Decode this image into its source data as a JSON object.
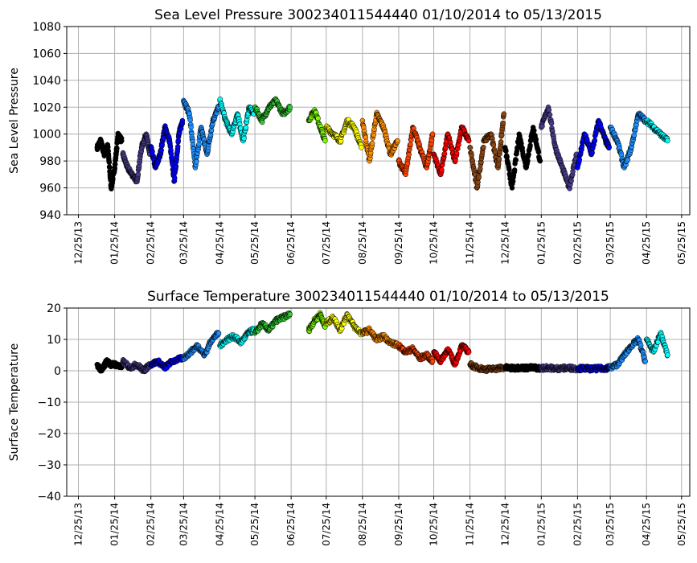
{
  "chart_data": [
    {
      "type": "scatter",
      "title": "Sea Level Pressure 300234011544440  01/10/2014 to 05/13/2015",
      "ylabel": "Sea Level Pressure",
      "xlabel": "",
      "ylim": [
        940,
        1080
      ],
      "yticks": [
        940,
        960,
        980,
        1000,
        1020,
        1040,
        1060,
        1080
      ],
      "xticks": [
        "12/25/13",
        "01/25/14",
        "02/25/14",
        "03/25/14",
        "04/25/14",
        "05/25/14",
        "06/25/14",
        "07/25/14",
        "08/25/14",
        "09/25/14",
        "10/25/14",
        "11/25/14",
        "12/25/14",
        "01/25/15",
        "02/25/15",
        "03/25/15",
        "04/25/15",
        "05/25/15"
      ],
      "grid": true,
      "x_range": [
        "2013-12-15",
        "2015-06-01"
      ],
      "series": [
        {
          "color": "#000000",
          "x": [
            "2014-01-10",
            "2014-01-13",
            "2014-01-16",
            "2014-01-19",
            "2014-01-22",
            "2014-01-25",
            "2014-01-28",
            "2014-01-31"
          ],
          "y": [
            990,
            995,
            985,
            992,
            960,
            975,
            1000,
            995
          ]
        },
        {
          "color": "#483d8b",
          "x": [
            "2014-02-01",
            "2014-02-05",
            "2014-02-09",
            "2014-02-13",
            "2014-02-17",
            "2014-02-21",
            "2014-02-24"
          ],
          "y": [
            985,
            975,
            970,
            965,
            990,
            1000,
            985
          ]
        },
        {
          "color": "#0000ff",
          "x": [
            "2014-02-25",
            "2014-03-01",
            "2014-03-05",
            "2014-03-09",
            "2014-03-13",
            "2014-03-17",
            "2014-03-21",
            "2014-03-24"
          ],
          "y": [
            990,
            975,
            985,
            1005,
            995,
            965,
            1000,
            1010
          ]
        },
        {
          "color": "#1e90ff",
          "x": [
            "2014-03-25",
            "2014-03-30",
            "2014-04-04",
            "2014-04-09",
            "2014-04-14",
            "2014-04-19",
            "2014-04-24"
          ],
          "y": [
            1025,
            1015,
            975,
            1005,
            985,
            1010,
            1020
          ]
        },
        {
          "color": "#00ffff",
          "x": [
            "2014-04-25",
            "2014-04-30",
            "2014-05-05",
            "2014-05-10",
            "2014-05-15",
            "2014-05-20",
            "2014-05-24"
          ],
          "y": [
            1025,
            1010,
            1000,
            1015,
            995,
            1020,
            1015
          ]
        },
        {
          "color": "#32cd32",
          "x": [
            "2014-05-25",
            "2014-05-31",
            "2014-06-06",
            "2014-06-12",
            "2014-06-18",
            "2014-06-24"
          ],
          "y": [
            1020,
            1010,
            1020,
            1025,
            1015,
            1020
          ]
        },
        {
          "color": "#7cfc00",
          "x": [
            "2014-07-10",
            "2014-07-15",
            "2014-07-20",
            "2014-07-24"
          ],
          "y": [
            1010,
            1018,
            1005,
            995
          ]
        },
        {
          "color": "#ffff00",
          "x": [
            "2014-07-25",
            "2014-07-31",
            "2014-08-06",
            "2014-08-12",
            "2014-08-18",
            "2014-08-24"
          ],
          "y": [
            1005,
            1000,
            995,
            1010,
            1005,
            990
          ]
        },
        {
          "color": "#ff8c00",
          "x": [
            "2014-08-25",
            "2014-08-31",
            "2014-09-06",
            "2014-09-12",
            "2014-09-18",
            "2014-09-24"
          ],
          "y": [
            1010,
            980,
            1015,
            1005,
            985,
            995
          ]
        },
        {
          "color": "#ff4500",
          "x": [
            "2014-09-25",
            "2014-10-01",
            "2014-10-07",
            "2014-10-13",
            "2014-10-19",
            "2014-10-24"
          ],
          "y": [
            980,
            970,
            1005,
            990,
            975,
            1000
          ]
        },
        {
          "color": "#ff0000",
          "x": [
            "2014-10-25",
            "2014-10-31",
            "2014-11-06",
            "2014-11-12",
            "2014-11-18",
            "2014-11-24"
          ],
          "y": [
            985,
            970,
            1000,
            980,
            1005,
            995
          ]
        },
        {
          "color": "#8b4513",
          "x": [
            "2014-11-25",
            "2014-12-01",
            "2014-12-07",
            "2014-12-13",
            "2014-12-19",
            "2014-12-24"
          ],
          "y": [
            990,
            960,
            995,
            1000,
            975,
            1015
          ]
        },
        {
          "color": "#000000",
          "x": [
            "2014-12-25",
            "2014-12-31",
            "2015-01-06",
            "2015-01-12",
            "2015-01-18",
            "2015-01-24"
          ],
          "y": [
            990,
            960,
            1000,
            975,
            1005,
            980
          ]
        },
        {
          "color": "#483d8b",
          "x": [
            "2015-01-25",
            "2015-01-31",
            "2015-02-06",
            "2015-02-12",
            "2015-02-18",
            "2015-02-24"
          ],
          "y": [
            1005,
            1020,
            990,
            975,
            960,
            985
          ]
        },
        {
          "color": "#0000ff",
          "x": [
            "2015-02-25",
            "2015-03-03",
            "2015-03-09",
            "2015-03-15",
            "2015-03-21",
            "2015-03-24"
          ],
          "y": [
            975,
            1000,
            985,
            1010,
            995,
            990
          ]
        },
        {
          "color": "#1e90ff",
          "x": [
            "2015-03-25",
            "2015-03-31",
            "2015-04-06",
            "2015-04-12",
            "2015-04-18",
            "2015-04-24"
          ],
          "y": [
            1005,
            995,
            975,
            990,
            1015,
            1010
          ]
        },
        {
          "color": "#00ffff",
          "x": [
            "2015-04-25",
            "2015-05-01",
            "2015-05-07",
            "2015-05-13"
          ],
          "y": [
            1010,
            1005,
            1000,
            995
          ]
        }
      ]
    },
    {
      "type": "scatter",
      "title": "Surface Temperature 300234011544440  01/10/2014 to 05/13/2015",
      "ylabel": "Surface Temperature",
      "xlabel": "",
      "ylim": [
        -40,
        20
      ],
      "yticks": [
        -40,
        -30,
        -20,
        -10,
        0,
        10,
        20
      ],
      "xticks": [
        "12/25/13",
        "01/25/14",
        "02/25/14",
        "03/25/14",
        "04/25/14",
        "05/25/14",
        "06/25/14",
        "07/25/14",
        "08/25/14",
        "09/25/14",
        "10/25/14",
        "11/25/14",
        "12/25/14",
        "01/25/15",
        "02/25/15",
        "03/25/15",
        "04/25/15",
        "05/25/15"
      ],
      "grid": true,
      "x_range": [
        "2013-12-15",
        "2015-06-01"
      ],
      "series": [
        {
          "color": "#000000",
          "x": [
            "2014-01-10",
            "2014-01-14",
            "2014-01-18",
            "2014-01-22",
            "2014-01-26",
            "2014-01-31"
          ],
          "y": [
            2,
            0,
            3,
            2,
            2,
            1
          ]
        },
        {
          "color": "#483d8b",
          "x": [
            "2014-02-01",
            "2014-02-07",
            "2014-02-13",
            "2014-02-19",
            "2014-02-24"
          ],
          "y": [
            3,
            1,
            2,
            0,
            2
          ]
        },
        {
          "color": "#0000ff",
          "x": [
            "2014-02-25",
            "2014-03-03",
            "2014-03-09",
            "2014-03-15",
            "2014-03-24"
          ],
          "y": [
            2,
            3,
            1,
            3,
            4
          ]
        },
        {
          "color": "#1e90ff",
          "x": [
            "2014-03-25",
            "2014-03-31",
            "2014-04-06",
            "2014-04-12",
            "2014-04-18",
            "2014-04-24"
          ],
          "y": [
            4,
            6,
            8,
            5,
            10,
            12
          ]
        },
        {
          "color": "#00ffff",
          "x": [
            "2014-04-25",
            "2014-05-01",
            "2014-05-07",
            "2014-05-13",
            "2014-05-19",
            "2014-05-24"
          ],
          "y": [
            8,
            10,
            11,
            9,
            12,
            13
          ]
        },
        {
          "color": "#32cd32",
          "x": [
            "2014-05-25",
            "2014-05-31",
            "2014-06-06",
            "2014-06-12",
            "2014-06-18",
            "2014-06-24"
          ],
          "y": [
            12,
            15,
            13,
            16,
            17,
            18
          ]
        },
        {
          "color": "#7cfc00",
          "x": [
            "2014-07-10",
            "2014-07-15",
            "2014-07-20",
            "2014-07-24"
          ],
          "y": [
            13,
            16,
            18,
            14
          ]
        },
        {
          "color": "#ffff00",
          "x": [
            "2014-07-25",
            "2014-07-31",
            "2014-08-06",
            "2014-08-12",
            "2014-08-18",
            "2014-08-24"
          ],
          "y": [
            15,
            17,
            13,
            18,
            14,
            12
          ]
        },
        {
          "color": "#ff8c00",
          "x": [
            "2014-08-25",
            "2014-08-31",
            "2014-09-06",
            "2014-09-12",
            "2014-09-18",
            "2014-09-24"
          ],
          "y": [
            12,
            13,
            10,
            11,
            9,
            8
          ]
        },
        {
          "color": "#ff4500",
          "x": [
            "2014-09-25",
            "2014-10-01",
            "2014-10-07",
            "2014-10-13",
            "2014-10-19",
            "2014-10-24"
          ],
          "y": [
            8,
            6,
            7,
            4,
            5,
            3
          ]
        },
        {
          "color": "#ff0000",
          "x": [
            "2014-10-25",
            "2014-10-31",
            "2014-11-06",
            "2014-11-12",
            "2014-11-18",
            "2014-11-24"
          ],
          "y": [
            6,
            3,
            7,
            2,
            8,
            6
          ]
        },
        {
          "color": "#8b4513",
          "x": [
            "2014-11-25",
            "2014-12-01",
            "2014-12-07",
            "2014-12-13",
            "2014-12-19",
            "2014-12-24"
          ],
          "y": [
            2,
            1,
            0.5,
            0.5,
            0.8,
            1
          ]
        },
        {
          "color": "#000000",
          "x": [
            "2014-12-25",
            "2014-12-31",
            "2015-01-06",
            "2015-01-12",
            "2015-01-18",
            "2015-01-24"
          ],
          "y": [
            1,
            0.8,
            1,
            0.9,
            1,
            0.8
          ]
        },
        {
          "color": "#483d8b",
          "x": [
            "2015-01-25",
            "2015-01-31",
            "2015-02-06",
            "2015-02-12",
            "2015-02-18",
            "2015-02-24"
          ],
          "y": [
            0.8,
            1,
            0.7,
            0.8,
            0.9,
            0.7
          ]
        },
        {
          "color": "#0000ff",
          "x": [
            "2015-02-25",
            "2015-03-03",
            "2015-03-09",
            "2015-03-15",
            "2015-03-21",
            "2015-03-24"
          ],
          "y": [
            0.7,
            0.8,
            0.6,
            0.7,
            0.8,
            1
          ]
        },
        {
          "color": "#1e90ff",
          "x": [
            "2015-03-25",
            "2015-03-31",
            "2015-04-06",
            "2015-04-12",
            "2015-04-18",
            "2015-04-24"
          ],
          "y": [
            1,
            2,
            5,
            8,
            10,
            3
          ]
        },
        {
          "color": "#00ffff",
          "x": [
            "2015-04-25",
            "2015-05-01",
            "2015-05-07",
            "2015-05-13"
          ],
          "y": [
            10,
            6,
            12,
            5
          ]
        }
      ]
    }
  ]
}
